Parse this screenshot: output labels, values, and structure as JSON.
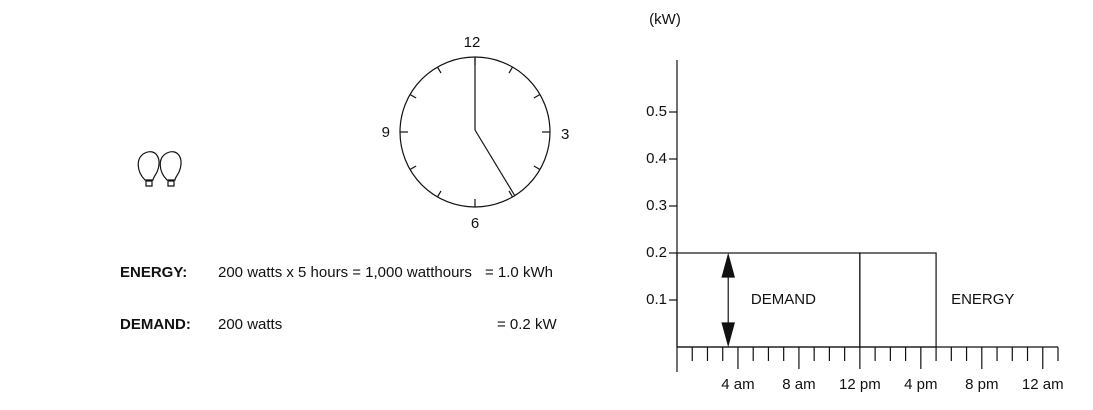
{
  "clock": {
    "labels": [
      "12",
      "3",
      "6",
      "9"
    ]
  },
  "energy": {
    "label": "ENERGY:",
    "text": "200 watts x 5 hours = 1,000 watthours",
    "result": "= 1.0 kWh"
  },
  "demand": {
    "label": "DEMAND:",
    "text": "200 watts",
    "result": "= 0.2 kW"
  },
  "chart_data": {
    "type": "step-block",
    "y_label": "(kW)",
    "ylim": [
      0,
      0.6
    ],
    "yticks": [
      0.1,
      0.2,
      0.3,
      0.4,
      0.5
    ],
    "xlim": [
      0,
      25
    ],
    "xticks": [
      {
        "value": 4,
        "label": "4 am"
      },
      {
        "value": 8,
        "label": "8 am"
      },
      {
        "value": 12,
        "label": "12 pm"
      },
      {
        "value": 16,
        "label": "4 pm"
      },
      {
        "value": 20,
        "label": "8 pm"
      },
      {
        "value": 24,
        "label": "12 am"
      }
    ],
    "minor_xticks": [
      1,
      2,
      3,
      5,
      6,
      7,
      9,
      10,
      11,
      13,
      14,
      15,
      17,
      18,
      19,
      21,
      22,
      23,
      25
    ],
    "blocks": [
      {
        "start": 0,
        "end": 12,
        "value": 0.2,
        "label": "DEMAND"
      },
      {
        "start": 12,
        "end": 17,
        "value": 0.2,
        "label": "ENERGY"
      }
    ]
  }
}
